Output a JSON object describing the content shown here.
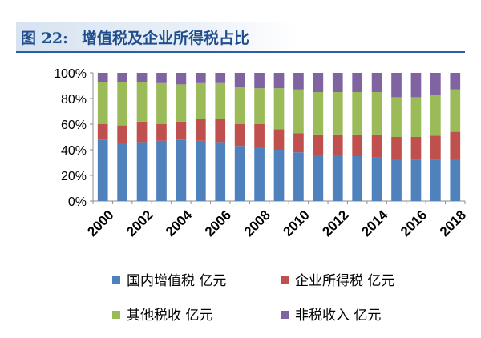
{
  "figure": {
    "label": "图 22:",
    "title": "增值税及企业所得税占比"
  },
  "chart_data": {
    "type": "bar",
    "stacked": true,
    "percent": true,
    "categories": [
      "2000",
      "2001",
      "2002",
      "2003",
      "2004",
      "2005",
      "2006",
      "2007",
      "2008",
      "2009",
      "2010",
      "2011",
      "2012",
      "2013",
      "2014",
      "2015",
      "2016",
      "2017",
      "2018"
    ],
    "x_tick_labels": [
      "2000",
      "2002",
      "2004",
      "2006",
      "2008",
      "2010",
      "2012",
      "2014",
      "2016",
      "2018"
    ],
    "y_tick_labels": [
      "0%",
      "20%",
      "40%",
      "60%",
      "80%",
      "100%"
    ],
    "ylim": [
      0,
      100
    ],
    "grid": false,
    "legend_position": "bottom",
    "series": [
      {
        "name": "国内增值税 亿元",
        "color": "#4f81bd",
        "values": [
          48,
          45,
          46,
          47,
          48,
          47,
          46,
          43,
          42,
          40,
          38,
          36,
          36,
          35,
          34,
          33,
          32,
          32,
          33
        ]
      },
      {
        "name": "企业所得税 亿元",
        "color": "#c0504d",
        "values": [
          12,
          14,
          16,
          13,
          14,
          17,
          18,
          17,
          18,
          16,
          15,
          16,
          16,
          17,
          18,
          17,
          18,
          19,
          21
        ]
      },
      {
        "name": "其他税收 亿元",
        "color": "#9bbb59",
        "values": [
          33,
          34,
          31,
          32,
          29,
          28,
          28,
          29,
          28,
          32,
          34,
          33,
          33,
          33,
          33,
          31,
          31,
          32,
          33
        ]
      },
      {
        "name": "非税收入 亿元",
        "color": "#8064a2",
        "values": [
          7,
          7,
          7,
          8,
          9,
          8,
          8,
          11,
          12,
          12,
          13,
          15,
          15,
          15,
          15,
          19,
          19,
          17,
          13
        ]
      }
    ]
  }
}
